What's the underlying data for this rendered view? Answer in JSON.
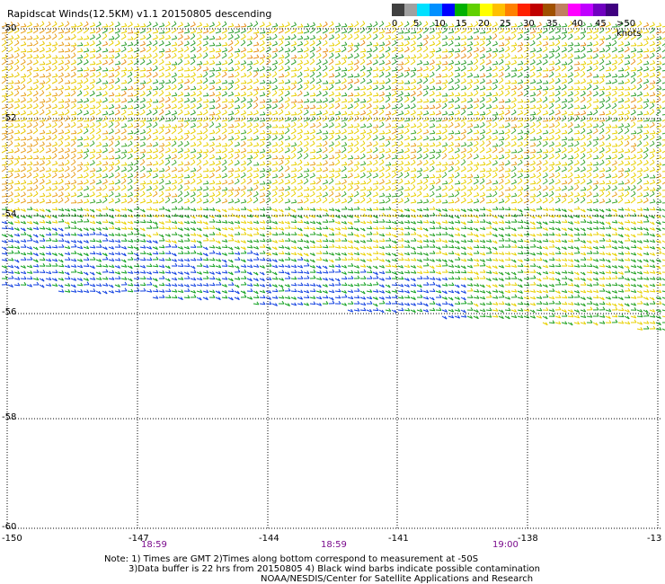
{
  "title": "Rapidscat Winds(12.5KM) v1.1 20150805 descending",
  "legend": {
    "labels": [
      "0",
      "5",
      "10",
      "15",
      "20",
      "25",
      "30",
      "35",
      "40",
      "45",
      ">50 knots"
    ],
    "colors": [
      "#404040",
      "#a0a0a0",
      "#00e0ff",
      "#0090ff",
      "#0000ff",
      "#00b000",
      "#60d000",
      "#ffff00",
      "#ffc000",
      "#ff8000",
      "#ff2000",
      "#c00000",
      "#a05000",
      "#c08060",
      "#ff00ff",
      "#c000ff",
      "#7000c0",
      "#400080"
    ]
  },
  "latitudes": [
    "-50",
    "-52",
    "-54",
    "-56",
    "-58",
    "-60"
  ],
  "longitudes": [
    "-150",
    "-147",
    "-144",
    "-141",
    "-138",
    "-13"
  ],
  "times": [
    "18:59",
    "18:59",
    "19:00"
  ],
  "notes": [
    "Note: 1) Times are GMT 2)Times along bottom correspond to measurement at -50S",
    "3)Data buffer is 22 hrs from 20150805 4) Black wind barbs indicate possible contamination",
    "NOAA/NESDIS/Center for Satellite Applications and Research"
  ]
}
